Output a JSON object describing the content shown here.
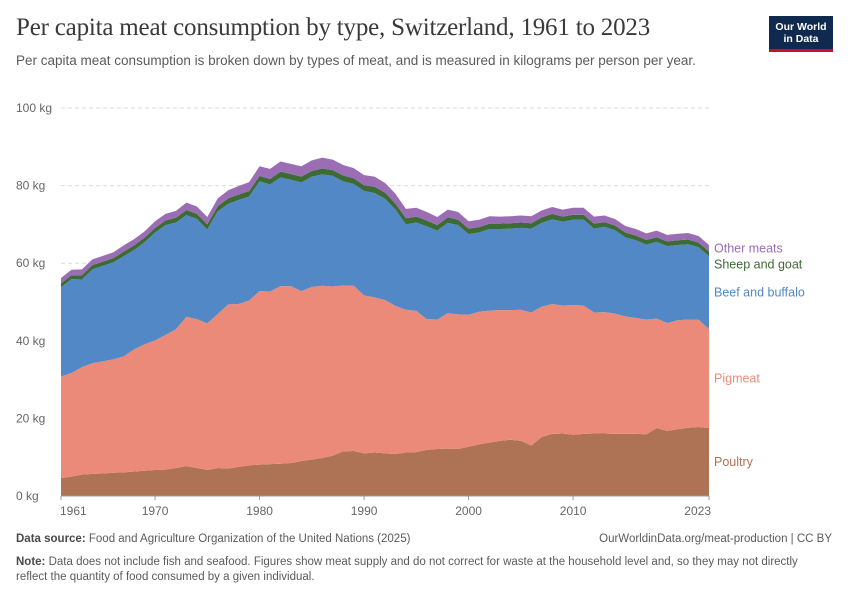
{
  "header": {
    "title": "Per capita meat consumption by type, Switzerland, 1961 to 2023",
    "subtitle": "Per capita meat consumption is broken down by types of meat, and is measured in kilograms per person per year.",
    "logo_line1": "Our World",
    "logo_line2": "in Data"
  },
  "footer": {
    "source_label": "Data source:",
    "source_text": "Food and Agriculture Organization of the United Nations (2025)",
    "url": "OurWorldinData.org/meat-production | CC BY",
    "note_label": "Note:",
    "note_text": "Data does not include fish and seafood. Figures show meat supply and do not correct for waste at the household level and, so they may not directly reflect the quantity of food consumed by a given individual."
  },
  "chart_data": {
    "type": "area",
    "stacked": true,
    "x": [
      1961,
      1962,
      1963,
      1964,
      1965,
      1966,
      1967,
      1968,
      1969,
      1970,
      1971,
      1972,
      1973,
      1974,
      1975,
      1976,
      1977,
      1978,
      1979,
      1980,
      1981,
      1982,
      1983,
      1984,
      1985,
      1986,
      1987,
      1988,
      1989,
      1990,
      1991,
      1992,
      1993,
      1994,
      1995,
      1996,
      1997,
      1998,
      1999,
      2000,
      2001,
      2002,
      2003,
      2004,
      2005,
      2006,
      2007,
      2008,
      2009,
      2010,
      2011,
      2012,
      2013,
      2014,
      2015,
      2016,
      2017,
      2018,
      2019,
      2020,
      2021,
      2022,
      2023
    ],
    "x_ticks": [
      1961,
      1970,
      1980,
      1990,
      2000,
      2010,
      2023
    ],
    "x_tick_labels": [
      "1961",
      "1970",
      "1980",
      "1990",
      "2000",
      "2010",
      "2023"
    ],
    "y_ticks": [
      0,
      20,
      40,
      60,
      80,
      100
    ],
    "y_tick_labels": [
      "0 kg",
      "20 kg",
      "40 kg",
      "60 kg",
      "80 kg",
      "100 kg"
    ],
    "ylim": [
      0,
      100
    ],
    "grid": "horizontal",
    "legend": "right",
    "series": [
      {
        "name": "Poultry",
        "color": "#ae7355",
        "values": [
          4.6,
          5.0,
          5.5,
          5.7,
          5.8,
          6.0,
          6.1,
          6.3,
          6.5,
          6.7,
          6.8,
          7.2,
          7.7,
          7.2,
          6.7,
          7.2,
          7.1,
          7.5,
          7.9,
          8.1,
          8.2,
          8.3,
          8.5,
          9.0,
          9.4,
          9.8,
          10.4,
          11.5,
          11.6,
          11.0,
          11.2,
          11.0,
          10.8,
          11.2,
          11.3,
          11.9,
          12.1,
          12.2,
          12.1,
          12.7,
          13.3,
          13.8,
          14.2,
          14.5,
          14.2,
          13.0,
          15.2,
          16.0,
          16.1,
          15.8,
          16.0,
          16.1,
          16.1,
          16.0,
          16.0,
          16.0,
          15.9,
          17.5,
          16.8,
          17.2,
          17.6,
          17.8,
          17.5
        ]
      },
      {
        "name": "Pigmeat",
        "color": "#ec8a7a",
        "values": [
          26.2,
          26.7,
          27.7,
          28.5,
          28.9,
          29.2,
          29.9,
          31.5,
          32.6,
          33.4,
          34.7,
          35.8,
          38.5,
          38.4,
          37.8,
          39.7,
          42.3,
          42.0,
          42.5,
          44.7,
          44.5,
          45.8,
          45.6,
          43.8,
          44.5,
          44.4,
          43.6,
          42.8,
          42.6,
          40.7,
          40.0,
          39.5,
          38.2,
          36.8,
          36.4,
          33.7,
          33.4,
          34.9,
          34.7,
          34.0,
          34.2,
          34.0,
          33.7,
          33.4,
          33.8,
          34.3,
          33.6,
          33.5,
          33.0,
          33.4,
          33.1,
          31.2,
          31.3,
          31.0,
          30.3,
          29.9,
          29.6,
          28.2,
          27.8,
          28.1,
          27.9,
          27.7,
          25.5
        ]
      },
      {
        "name": "Beef and buffalo",
        "color": "#5288c6",
        "values": [
          23.0,
          24.2,
          22.6,
          24.2,
          24.6,
          25.0,
          25.8,
          25.6,
          26.3,
          27.8,
          28.3,
          27.5,
          26.2,
          25.8,
          24.2,
          26.5,
          25.9,
          26.8,
          26.8,
          28.3,
          27.6,
          28.0,
          27.4,
          28.0,
          28.4,
          28.7,
          28.5,
          26.8,
          26.2,
          26.9,
          26.9,
          26.1,
          24.8,
          22.0,
          22.8,
          23.9,
          22.9,
          23.3,
          23.0,
          20.8,
          20.4,
          21.0,
          20.9,
          21.0,
          21.1,
          21.6,
          21.6,
          21.8,
          21.6,
          22.0,
          22.1,
          21.6,
          22.0,
          21.5,
          20.4,
          20.0,
          19.3,
          19.8,
          19.8,
          19.4,
          19.4,
          18.6,
          18.8
        ]
      },
      {
        "name": "Sheep and goat",
        "color": "#3d6b35",
        "values": [
          1.0,
          1.0,
          1.1,
          1.1,
          1.1,
          1.1,
          1.2,
          1.2,
          1.2,
          1.2,
          1.2,
          1.2,
          1.3,
          1.3,
          1.3,
          1.3,
          1.4,
          1.4,
          1.4,
          1.4,
          1.4,
          1.5,
          1.5,
          1.5,
          1.5,
          1.5,
          1.5,
          1.5,
          1.5,
          1.5,
          1.6,
          1.6,
          1.6,
          1.6,
          1.5,
          1.5,
          1.4,
          1.4,
          1.4,
          1.4,
          1.4,
          1.4,
          1.4,
          1.4,
          1.4,
          1.4,
          1.4,
          1.4,
          1.3,
          1.3,
          1.3,
          1.3,
          1.2,
          1.2,
          1.2,
          1.2,
          1.2,
          1.2,
          1.2,
          1.2,
          1.2,
          1.2,
          1.2
        ]
      },
      {
        "name": "Other meats",
        "color": "#9a6db5",
        "values": [
          1.4,
          1.4,
          1.5,
          1.5,
          1.5,
          1.5,
          1.6,
          1.6,
          1.6,
          1.7,
          1.7,
          1.8,
          1.9,
          1.9,
          1.9,
          2.0,
          2.1,
          2.2,
          2.3,
          2.5,
          2.6,
          2.6,
          2.6,
          2.7,
          2.7,
          2.8,
          2.7,
          2.7,
          2.6,
          2.6,
          2.6,
          2.5,
          2.5,
          2.4,
          2.3,
          2.2,
          2.1,
          2.0,
          2.0,
          1.9,
          1.9,
          1.9,
          1.8,
          1.8,
          1.8,
          1.8,
          1.8,
          1.8,
          1.8,
          1.8,
          1.8,
          1.8,
          1.7,
          1.7,
          1.7,
          1.7,
          1.7,
          1.7,
          1.7,
          1.7,
          1.7,
          1.7,
          1.7
        ]
      }
    ]
  }
}
